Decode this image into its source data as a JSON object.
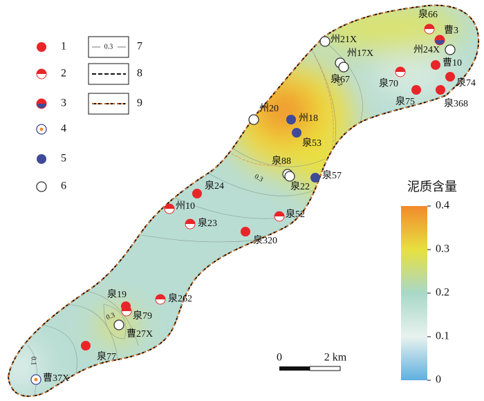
{
  "legend": [
    {
      "label": "1",
      "kind": "solid-red"
    },
    {
      "label": "2",
      "kind": "half-red"
    },
    {
      "label": "3",
      "kind": "red-blue"
    },
    {
      "label": "4",
      "kind": "dot"
    },
    {
      "label": "5",
      "kind": "blue"
    },
    {
      "label": "6",
      "kind": "hollow"
    },
    {
      "label": "7",
      "kind": "contour",
      "sample": "0.3"
    },
    {
      "label": "8",
      "kind": "black-dash"
    },
    {
      "label": "9",
      "kind": "orange-dash"
    }
  ],
  "wells": [
    {
      "label": "州21X",
      "kind": "hollow"
    },
    {
      "label": "州17X",
      "kind": "hollow"
    },
    {
      "label": "泉67",
      "kind": "hollow"
    },
    {
      "label": "泉66",
      "kind": "half-red"
    },
    {
      "label": "曹3",
      "kind": "red-blue"
    },
    {
      "label": "州24X",
      "kind": "hollow"
    },
    {
      "label": "曹10",
      "kind": "solid-red"
    },
    {
      "label": "泉74",
      "kind": "solid-red"
    },
    {
      "label": "泉368",
      "kind": "solid-red"
    },
    {
      "label": "泉75",
      "kind": "solid-red"
    },
    {
      "label": "泉70",
      "kind": "half-red"
    },
    {
      "label": "州20",
      "kind": "hollow"
    },
    {
      "label": "州18",
      "kind": "blue"
    },
    {
      "label": "泉53",
      "kind": "blue"
    },
    {
      "label": "泉88",
      "kind": "hollow"
    },
    {
      "label": "泉22",
      "kind": "hollow"
    },
    {
      "label": "泉57",
      "kind": "blue"
    },
    {
      "label": "泉24",
      "kind": "solid-red"
    },
    {
      "label": "州10",
      "kind": "half-red"
    },
    {
      "label": "泉23",
      "kind": "half-red"
    },
    {
      "label": "泉52",
      "kind": "half-red"
    },
    {
      "label": "泉320",
      "kind": "solid-red"
    },
    {
      "label": "泉262",
      "kind": "half-red"
    },
    {
      "label": "泉19",
      "kind": "solid-red"
    },
    {
      "label": "泉79",
      "kind": "half-red"
    },
    {
      "label": "曹27X",
      "kind": "hollow"
    },
    {
      "label": "泉77",
      "kind": "solid-red"
    },
    {
      "label": "曹37X",
      "kind": "dot"
    }
  ],
  "contour_labels": [
    "0.3",
    "0.3",
    "0.3",
    "0.1"
  ],
  "colorbar": {
    "title": "泥质含量",
    "range": [
      0,
      0.4
    ],
    "ticks": [
      0.4,
      0.3,
      0.2,
      0.1,
      0
    ]
  },
  "scale_bar": {
    "start": "0",
    "end": "2 km"
  }
}
